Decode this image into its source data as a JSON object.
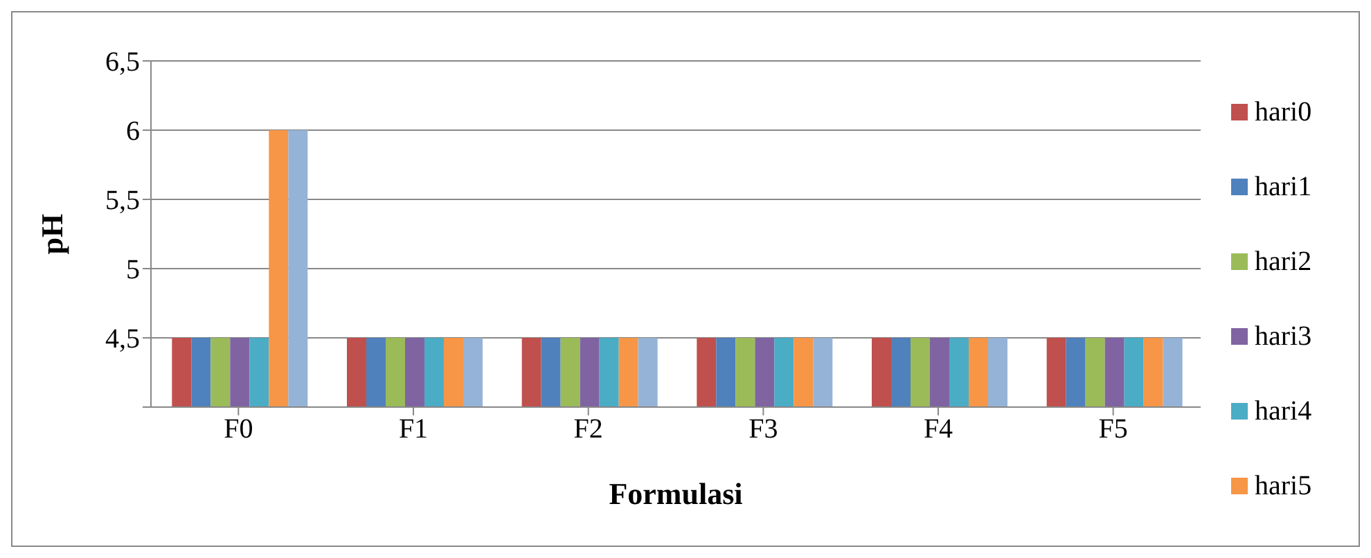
{
  "chart_data": {
    "type": "bar",
    "xlabel": "Formulasi",
    "ylabel": "pH",
    "categories": [
      "F0",
      "F1",
      "F2",
      "F3",
      "F4",
      "F5"
    ],
    "series": [
      {
        "name": "hari0",
        "color": "#c0504d",
        "values": [
          4.5,
          4.5,
          4.5,
          4.5,
          4.5,
          4.5
        ]
      },
      {
        "name": "hari1",
        "color": "#4f81bd",
        "values": [
          4.5,
          4.5,
          4.5,
          4.5,
          4.5,
          4.5
        ]
      },
      {
        "name": "hari2",
        "color": "#9bbb59",
        "values": [
          4.5,
          4.5,
          4.5,
          4.5,
          4.5,
          4.5
        ]
      },
      {
        "name": "hari3",
        "color": "#8064a2",
        "values": [
          4.5,
          4.5,
          4.5,
          4.5,
          4.5,
          4.5
        ]
      },
      {
        "name": "hari4",
        "color": "#4bacc6",
        "values": [
          4.5,
          4.5,
          4.5,
          4.5,
          4.5,
          4.5
        ]
      },
      {
        "name": "hari5",
        "color": "#f79646",
        "values": [
          6,
          4.5,
          4.5,
          4.5,
          4.5,
          4.5
        ]
      },
      {
        "color": "#95b3d7",
        "values": [
          6,
          4.5,
          4.5,
          4.5,
          4.5,
          4.5
        ]
      }
    ],
    "ylim": [
      4,
      6.5
    ],
    "yticks": [
      {
        "value": 4,
        "label": null
      },
      {
        "value": 4.5,
        "label": "4,5"
      },
      {
        "value": 5,
        "label": "5"
      },
      {
        "value": 5.5,
        "label": "5,5"
      },
      {
        "value": 6,
        "label": "6"
      },
      {
        "value": 6.5,
        "label": "6,5"
      }
    ],
    "grid": "y",
    "legend": "right"
  }
}
